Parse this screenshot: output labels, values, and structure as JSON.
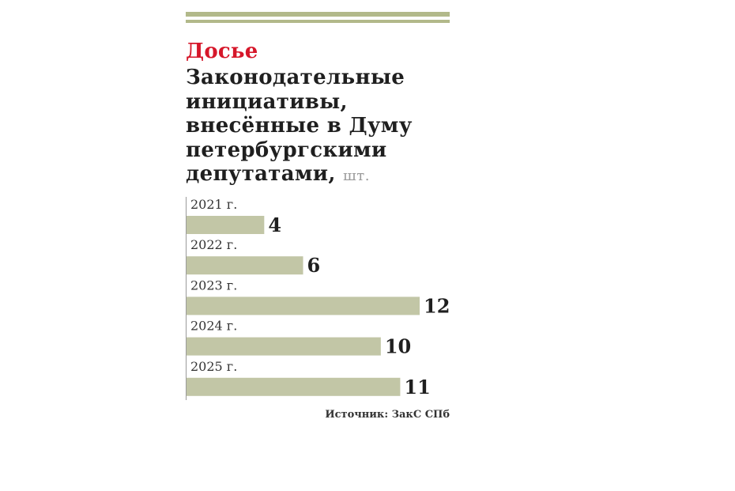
{
  "header": {
    "kicker": "Досье",
    "title": "Законодательные инициативы, внесённые в Думу петербургскими депутатами,",
    "unit": "шт."
  },
  "colors": {
    "rule": "#b2b98a",
    "bar": "#c2c6a6",
    "kicker": "#d6172a",
    "axis": "#9a9a9a"
  },
  "chart_data": {
    "type": "bar",
    "orientation": "horizontal",
    "categories": [
      "2021 г.",
      "2022 г.",
      "2023 г.",
      "2024 г.",
      "2025 г."
    ],
    "values": [
      4,
      6,
      12,
      10,
      11
    ],
    "xlim": [
      0,
      12
    ],
    "grid": false
  },
  "source": {
    "text": "Источник: ЗакС СПб"
  }
}
